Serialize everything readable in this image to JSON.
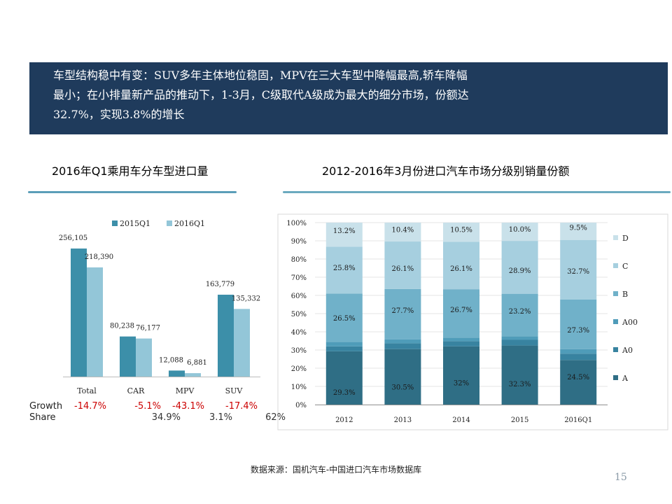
{
  "banner": {
    "line1": "车型结构稳中有变：SUV多年主体地位稳固，MPV在三大车型中降幅最高,轿车降幅",
    "line2": "最小；在小排量新产品的推动下，1-3月，C级取代A级成为最大的细分市场，份额达",
    "line3": "32.7%，实现3.8%的增长"
  },
  "left_title": "2016年Q1乘用车分车型进口量",
  "right_title": "2012-2016年3月份进口汽车市场分级别销量份额",
  "chart_data": [
    {
      "type": "bar",
      "categories": [
        "Total",
        "CAR",
        "MPV",
        "SUV"
      ],
      "series": [
        {
          "name": "2015Q1",
          "values": [
            256105,
            80238,
            12088,
            163779
          ],
          "labels": [
            "256,105",
            "80,238",
            "12,088",
            "163,779"
          ],
          "color": "#3c8fa9"
        },
        {
          "name": "2016Q1",
          "values": [
            218390,
            76177,
            6881,
            135332
          ],
          "labels": [
            "218,390",
            "76,177",
            "6,881",
            "135,332"
          ],
          "color": "#93c6d8"
        }
      ],
      "ylim": [
        0,
        280000
      ],
      "legend_position": "top",
      "growth_label": "Growth",
      "growth": [
        "-14.7%",
        "-5.1%",
        "-43.1%",
        "-17.4%"
      ],
      "share_label": "Share",
      "share": [
        "",
        "34.9%",
        "3.1%",
        "62%"
      ]
    },
    {
      "type": "bar",
      "stacked": true,
      "categories": [
        "2012",
        "2013",
        "2014",
        "2015",
        "2016Q1"
      ],
      "ylim": [
        0,
        100
      ],
      "yticks": [
        "0%",
        "10%",
        "20%",
        "30%",
        "40%",
        "50%",
        "60%",
        "70%",
        "80%",
        "90%",
        "100%"
      ],
      "legend_position": "right",
      "series": [
        {
          "name": "A",
          "values": [
            29.3,
            30.5,
            32.0,
            32.3,
            24.5
          ],
          "labels": [
            "29.3%",
            "30.5%",
            "32%",
            "32.3%",
            "24.5%"
          ],
          "color": "#2f6e85"
        },
        {
          "name": "A0",
          "values": [
            2.7,
            3.2,
            2.9,
            3.1,
            3.5
          ],
          "labels": [
            "",
            "",
            "",
            "",
            ""
          ],
          "color": "#3883a0"
        },
        {
          "name": "A00",
          "values": [
            2.5,
            2.1,
            1.8,
            2.0,
            2.5
          ],
          "labels": [
            "",
            "",
            "",
            "",
            ""
          ],
          "color": "#4f9cb9"
        },
        {
          "name": "B",
          "values": [
            26.5,
            27.7,
            26.7,
            23.2,
            27.3
          ],
          "labels": [
            "26.5%",
            "27.7%",
            "26.7%",
            "23.2%",
            "27.3%"
          ],
          "color": "#70b1c9"
        },
        {
          "name": "C",
          "values": [
            25.8,
            26.1,
            26.1,
            28.9,
            32.7
          ],
          "labels": [
            "25.8%",
            "26.1%",
            "26.1%",
            "28.9%",
            "32.7%"
          ],
          "color": "#a6cfdf"
        },
        {
          "name": "D",
          "values": [
            13.2,
            10.4,
            10.5,
            10.0,
            9.5
          ],
          "labels": [
            "13.2%",
            "10.4%",
            "10.5%",
            "10.0%",
            "9.5%"
          ],
          "color": "#c9e1ea"
        }
      ]
    }
  ],
  "source": "数据来源：国机汽车-中国进口汽车市场数据库",
  "page_number": "15"
}
